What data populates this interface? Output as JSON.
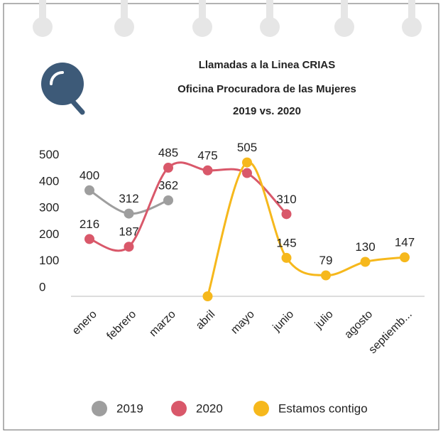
{
  "chart_data": {
    "type": "line",
    "title": [
      "Llamadas a la Linea CRIAS",
      "Oficina Procuradora de las Mujeres",
      "2019 vs. 2020"
    ],
    "categories": [
      "enero",
      "febrero",
      "marzo",
      "abril",
      "mayo",
      "junio",
      "julio",
      "agosto",
      "septiemb..."
    ],
    "series": [
      {
        "name": "2019",
        "color": "#9e9e9e",
        "values": [
          400,
          312,
          362,
          null,
          null,
          null,
          null,
          null,
          null
        ],
        "value_labels": [
          "400",
          "312",
          "362",
          null,
          null,
          null,
          null,
          null,
          null
        ]
      },
      {
        "name": "2020",
        "color": "#d9586a",
        "values": [
          216,
          187,
          485,
          475,
          465,
          310,
          null,
          null,
          null
        ],
        "value_labels": [
          "216",
          "187",
          "485",
          "475",
          null,
          "310",
          null,
          null,
          null
        ]
      },
      {
        "name": "Estamos contigo",
        "color": "#f6b81c",
        "values": [
          null,
          null,
          null,
          0,
          505,
          145,
          79,
          130,
          147
        ],
        "value_labels": [
          null,
          null,
          null,
          null,
          "505",
          "145",
          "79",
          "130",
          "147"
        ]
      }
    ],
    "ylim": [
      0,
      520
    ],
    "yticks": [
      0,
      100,
      200,
      300,
      400,
      500
    ],
    "legend": "bottom"
  }
}
